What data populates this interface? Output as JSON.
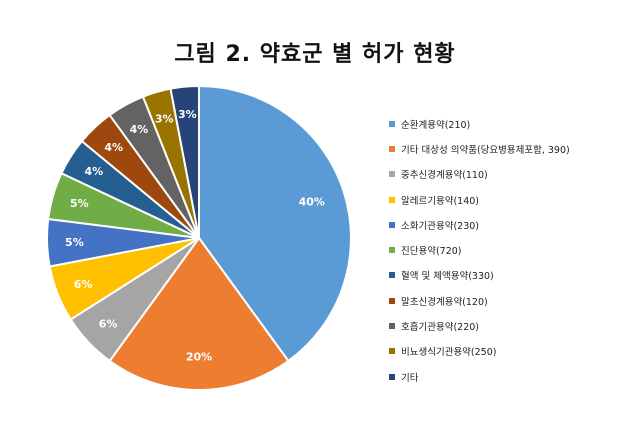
{
  "chart_data": {
    "type": "pie",
    "title": "그림 2. 약효군 별 허가 현황",
    "start": "12 o'clock",
    "direction": "clockwise",
    "legend_position": "right",
    "data_label_format": "percent",
    "slices": [
      {
        "label": "순환계용약(210)",
        "value": 40,
        "display": "40%",
        "color": "#5b9bd5"
      },
      {
        "label": "기타 대상성 의약품(당요병용제포함, 390)",
        "value": 20,
        "display": "20%",
        "color": "#ed7d31"
      },
      {
        "label": "중추신경계용약(110)",
        "value": 6,
        "display": "6%",
        "color": "#a5a5a5"
      },
      {
        "label": "알레르기용약(140)",
        "value": 6,
        "display": "6%",
        "color": "#ffc000"
      },
      {
        "label": "소화기관용약(230)",
        "value": 5,
        "display": "5%",
        "color": "#4472c4"
      },
      {
        "label": "진단용약(720)",
        "value": 5,
        "display": "5%",
        "color": "#70ad47"
      },
      {
        "label": "혈액 및 체액용약(330)",
        "value": 4,
        "display": "4%",
        "color": "#255e91"
      },
      {
        "label": "말초신경계용약(120)",
        "value": 4,
        "display": "4%",
        "color": "#9e480e"
      },
      {
        "label": "호흡기관용약(220)",
        "value": 4,
        "display": "4%",
        "color": "#636363"
      },
      {
        "label": "비뇨생식기관용약(250)",
        "value": 3,
        "display": "3%",
        "color": "#997300"
      },
      {
        "label": "기타",
        "value": 3,
        "display": "3%",
        "color": "#264478"
      }
    ]
  }
}
